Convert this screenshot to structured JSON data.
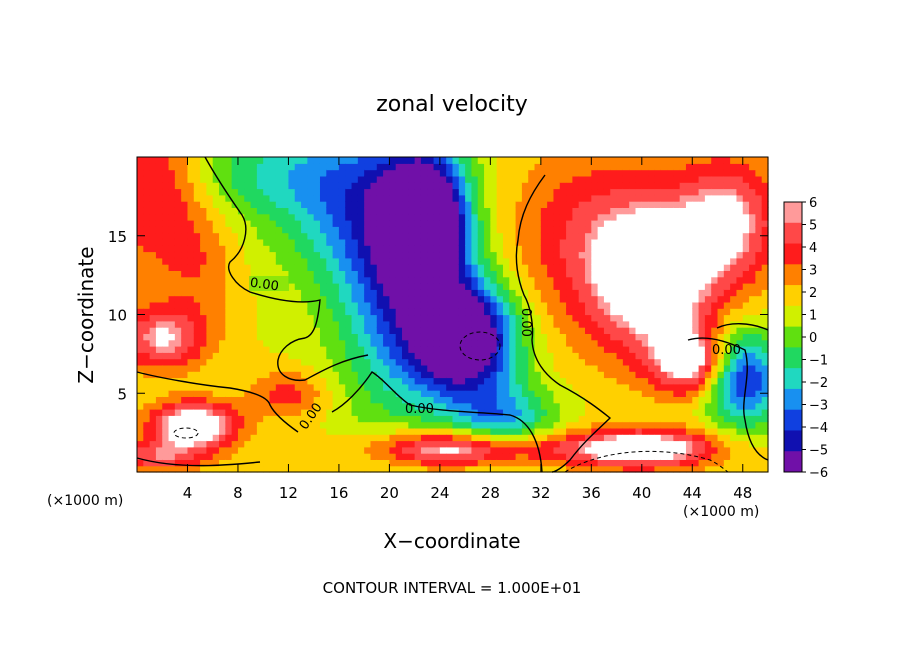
{
  "chart_data": {
    "type": "heatmap",
    "title": "zonal velocity",
    "xlabel": "X−coordinate",
    "ylabel": "Z−coordinate",
    "x_unit_label": "(×1000 m)",
    "y_unit_label": "(×1000 m)",
    "xlim": [
      0,
      50
    ],
    "ylim": [
      0,
      20
    ],
    "x_ticks": [
      4,
      8,
      12,
      16,
      20,
      24,
      28,
      32,
      36,
      40,
      44,
      48
    ],
    "x_tick_labels": [
      "4",
      "8",
      "12",
      "16",
      "20",
      "24",
      "28",
      "32",
      "36",
      "40",
      "44",
      "48"
    ],
    "y_ticks": [
      5,
      10,
      15
    ],
    "y_tick_labels": [
      "5",
      "10",
      "15"
    ],
    "colorbar": {
      "range": [
        -6,
        6
      ],
      "tick_labels": [
        "6",
        "5",
        "4",
        "3",
        "2",
        "1",
        "0",
        "−1",
        "−2",
        "−3",
        "−4",
        "−5",
        "−6"
      ],
      "colors": [
        "#ff9a9a",
        "#ff4848",
        "#ff1c1c",
        "#ff8000",
        "#ffd000",
        "#d0f000",
        "#60e010",
        "#20d860",
        "#20d8c0",
        "#1890f0",
        "#1040e0",
        "#1010b0",
        "#7010a8"
      ]
    },
    "contour_labels": [
      "0.00",
      "0.00",
      "0.00",
      "0.00",
      "0.00"
    ],
    "footer": "CONTOUR INTERVAL = 1.000E+01",
    "value_field": {
      "background_value": 1.5,
      "blobs": [
        {
          "x": 1.5,
          "z": 18,
          "sx": 4,
          "sz": 5,
          "value": 5
        },
        {
          "x": 2,
          "z": 8.5,
          "sx": 3.5,
          "sz": 2,
          "value": 6
        },
        {
          "x": 4.5,
          "z": 3,
          "sx": 3.5,
          "sz": 1.5,
          "value": 8
        },
        {
          "x": 1.5,
          "z": 1,
          "sx": 4,
          "sz": 1,
          "value": 5
        },
        {
          "x": 10,
          "z": 19,
          "sx": 8,
          "sz": 3,
          "value": -1
        },
        {
          "x": 17,
          "z": 17,
          "sx": 6,
          "sz": 5,
          "value": -2
        },
        {
          "x": 23,
          "z": 16,
          "sx": 3,
          "sz": 4,
          "value": -8
        },
        {
          "x": 26,
          "z": 8.5,
          "sx": 4,
          "sz": 3.5,
          "value": -8
        },
        {
          "x": 21,
          "z": 12,
          "sx": 5,
          "sz": 8,
          "value": -4
        },
        {
          "x": 29,
          "z": 3,
          "sx": 4,
          "sz": 2.5,
          "value": -3
        },
        {
          "x": 12,
          "z": 5,
          "sx": 3,
          "sz": 1.5,
          "value": 4
        },
        {
          "x": 26,
          "z": 1.5,
          "sx": 7,
          "sz": 1.2,
          "value": 8
        },
        {
          "x": 40,
          "z": 1.5,
          "sx": 6,
          "sz": 1.2,
          "value": 8
        },
        {
          "x": 41,
          "z": 12.5,
          "sx": 5,
          "sz": 5,
          "value": 8
        },
        {
          "x": 44,
          "z": 7,
          "sx": 3,
          "sz": 2,
          "value": 7
        },
        {
          "x": 47,
          "z": 16,
          "sx": 4,
          "sz": 4,
          "value": 6
        },
        {
          "x": 35,
          "z": 15,
          "sx": 6,
          "sz": 6,
          "value": 4
        },
        {
          "x": 48,
          "z": 6,
          "sx": 3,
          "sz": 3,
          "value": -5
        },
        {
          "x": 5,
          "z": 13,
          "sx": 3,
          "sz": 4,
          "value": 3
        }
      ]
    }
  }
}
